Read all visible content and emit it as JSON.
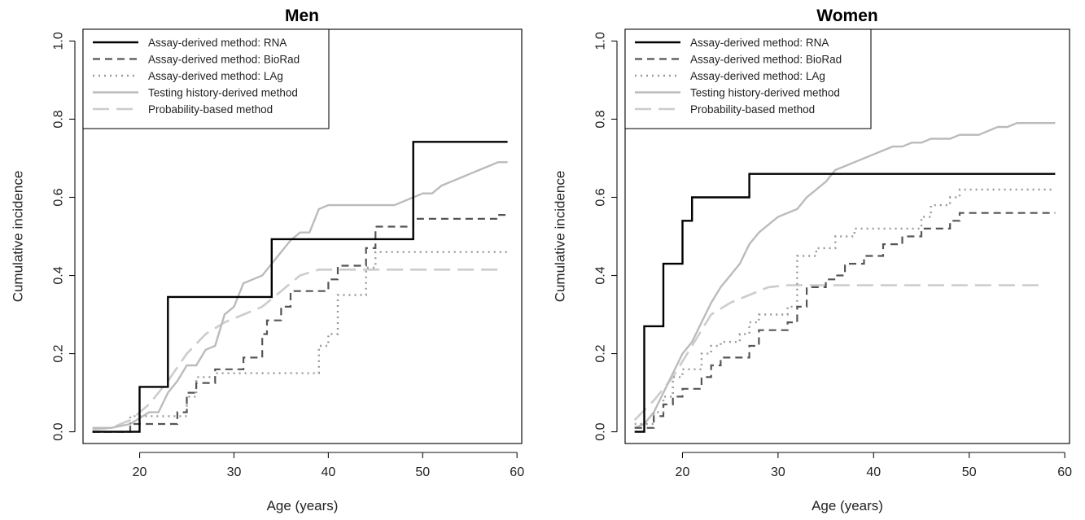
{
  "chart_data": [
    {
      "type": "line",
      "title": "Men",
      "xlabel": "Age (years)",
      "ylabel": "Cumulative incidence",
      "xlim": [
        14,
        60.5
      ],
      "ylim": [
        -0.03,
        1.03
      ],
      "xticks": [
        "20",
        "30",
        "40",
        "50",
        "60"
      ],
      "yticks": [
        "0.0",
        "0.2",
        "0.4",
        "0.6",
        "0.8",
        "1.0"
      ],
      "grid": false,
      "legend_position": "top-left",
      "series": [
        {
          "name": "Assay-derived method: RNA",
          "style": "solid",
          "color": "#000000",
          "step": true,
          "x": [
            15,
            19,
            20,
            22,
            23,
            33,
            34,
            48,
            49,
            59
          ],
          "y": [
            0,
            0,
            0.115,
            0.115,
            0.345,
            0.345,
            0.493,
            0.493,
            0.742,
            0.742
          ]
        },
        {
          "name": "Assay-derived method: BioRad",
          "style": "dashed",
          "color": "#555555",
          "step": true,
          "x": [
            15,
            18,
            19,
            23,
            24,
            25,
            26,
            27,
            28,
            30,
            31,
            32,
            33,
            33.5,
            34,
            35,
            36,
            37,
            38,
            39,
            40,
            41,
            42,
            43,
            44,
            45,
            48,
            49,
            50,
            57,
            58,
            59
          ],
          "y": [
            0,
            0,
            0.02,
            0.02,
            0.05,
            0.1,
            0.125,
            0.125,
            0.16,
            0.16,
            0.19,
            0.19,
            0.25,
            0.285,
            0.285,
            0.32,
            0.36,
            0.36,
            0.36,
            0.36,
            0.39,
            0.425,
            0.425,
            0.425,
            0.47,
            0.525,
            0.525,
            0.545,
            0.545,
            0.545,
            0.555,
            0.56
          ]
        },
        {
          "name": "Assay-derived method: LAg",
          "style": "dotted",
          "color": "#999999",
          "step": true,
          "x": [
            15,
            18,
            19,
            23,
            25,
            26,
            27,
            28,
            38,
            39,
            40,
            41,
            43,
            44,
            45,
            59
          ],
          "y": [
            0,
            0,
            0.04,
            0.04,
            0.09,
            0.14,
            0.14,
            0.15,
            0.15,
            0.22,
            0.25,
            0.35,
            0.35,
            0.42,
            0.46,
            0.46
          ]
        },
        {
          "name": "Testing history-derived method",
          "style": "solid",
          "color": "#bbbbbb",
          "step": false,
          "x": [
            15,
            17,
            19,
            21,
            22,
            23,
            24,
            25,
            26,
            27,
            28,
            29,
            30,
            31,
            32,
            33,
            34,
            35,
            36,
            37,
            38,
            39,
            40,
            41,
            42,
            43,
            44,
            45,
            46,
            47,
            48,
            49,
            50,
            51,
            52,
            53,
            54,
            55,
            56,
            57,
            58,
            59
          ],
          "y": [
            0.01,
            0.01,
            0.02,
            0.05,
            0.05,
            0.1,
            0.13,
            0.17,
            0.17,
            0.21,
            0.22,
            0.3,
            0.32,
            0.38,
            0.39,
            0.4,
            0.43,
            0.46,
            0.49,
            0.51,
            0.51,
            0.57,
            0.58,
            0.58,
            0.58,
            0.58,
            0.58,
            0.58,
            0.58,
            0.58,
            0.59,
            0.6,
            0.61,
            0.61,
            0.63,
            0.64,
            0.65,
            0.66,
            0.67,
            0.68,
            0.69,
            0.69
          ]
        },
        {
          "name": "Probability-based method",
          "style": "longdash",
          "color": "#cccccc",
          "step": false,
          "x": [
            15,
            17,
            19,
            21,
            23,
            25,
            27,
            29,
            31,
            33,
            35,
            37,
            39,
            41,
            43,
            58
          ],
          "y": [
            0.005,
            0.01,
            0.03,
            0.07,
            0.13,
            0.2,
            0.25,
            0.28,
            0.3,
            0.32,
            0.36,
            0.4,
            0.415,
            0.415,
            0.415,
            0.415
          ]
        }
      ]
    },
    {
      "type": "line",
      "title": "Women",
      "xlabel": "Age (years)",
      "ylabel": "Cumulative incidence",
      "xlim": [
        14,
        60.5
      ],
      "ylim": [
        -0.03,
        1.03
      ],
      "xticks": [
        "20",
        "30",
        "40",
        "50",
        "60"
      ],
      "yticks": [
        "0.0",
        "0.2",
        "0.4",
        "0.6",
        "0.8",
        "1.0"
      ],
      "grid": false,
      "legend_position": "top-left",
      "series": [
        {
          "name": "Assay-derived method: RNA",
          "style": "solid",
          "color": "#000000",
          "step": true,
          "x": [
            15,
            16,
            17,
            18,
            19,
            20,
            21,
            22,
            27,
            28,
            59
          ],
          "y": [
            0,
            0.27,
            0.27,
            0.43,
            0.43,
            0.54,
            0.6,
            0.6,
            0.66,
            0.66,
            0.66
          ]
        },
        {
          "name": "Assay-derived method: BioRad",
          "style": "dashed",
          "color": "#555555",
          "step": true,
          "x": [
            15,
            16,
            17,
            18,
            19,
            20,
            21,
            22,
            23,
            24,
            25,
            26,
            27,
            28,
            30,
            31,
            32,
            33,
            34,
            35,
            36,
            37,
            38,
            39,
            40,
            41,
            42,
            43,
            44,
            45,
            46,
            47,
            48,
            49,
            50,
            59
          ],
          "y": [
            0.01,
            0.01,
            0.04,
            0.07,
            0.09,
            0.11,
            0.11,
            0.14,
            0.17,
            0.19,
            0.19,
            0.19,
            0.22,
            0.26,
            0.26,
            0.28,
            0.32,
            0.37,
            0.37,
            0.39,
            0.4,
            0.43,
            0.43,
            0.45,
            0.45,
            0.48,
            0.48,
            0.5,
            0.5,
            0.52,
            0.52,
            0.52,
            0.54,
            0.56,
            0.56,
            0.56
          ]
        },
        {
          "name": "Assay-derived method: LAg",
          "style": "dotted",
          "color": "#999999",
          "step": true,
          "x": [
            15,
            16,
            17,
            18,
            19,
            20,
            21,
            22,
            23,
            24,
            25,
            26,
            27,
            28,
            29,
            30,
            31,
            32,
            33,
            34,
            35,
            36,
            37,
            38,
            39,
            40,
            41,
            42,
            43,
            44,
            45,
            46,
            47,
            48,
            49,
            50,
            59
          ],
          "y": [
            0.02,
            0.02,
            0.05,
            0.09,
            0.14,
            0.16,
            0.16,
            0.2,
            0.22,
            0.23,
            0.23,
            0.25,
            0.28,
            0.3,
            0.3,
            0.3,
            0.32,
            0.45,
            0.45,
            0.47,
            0.47,
            0.5,
            0.5,
            0.52,
            0.52,
            0.52,
            0.52,
            0.52,
            0.52,
            0.52,
            0.55,
            0.58,
            0.58,
            0.6,
            0.62,
            0.62,
            0.62
          ]
        },
        {
          "name": "Testing history-derived method",
          "style": "solid",
          "color": "#bbbbbb",
          "step": false,
          "x": [
            15,
            16,
            17,
            18,
            19,
            20,
            21,
            22,
            23,
            24,
            25,
            26,
            27,
            28,
            29,
            30,
            31,
            32,
            33,
            34,
            35,
            36,
            37,
            38,
            39,
            40,
            41,
            42,
            43,
            44,
            45,
            46,
            47,
            48,
            49,
            50,
            51,
            52,
            53,
            54,
            55,
            56,
            57,
            58,
            59
          ],
          "y": [
            0.01,
            0.02,
            0.05,
            0.1,
            0.15,
            0.2,
            0.23,
            0.28,
            0.33,
            0.37,
            0.4,
            0.43,
            0.48,
            0.51,
            0.53,
            0.55,
            0.56,
            0.57,
            0.6,
            0.62,
            0.64,
            0.67,
            0.68,
            0.69,
            0.7,
            0.71,
            0.72,
            0.73,
            0.73,
            0.74,
            0.74,
            0.75,
            0.75,
            0.75,
            0.76,
            0.76,
            0.76,
            0.77,
            0.78,
            0.78,
            0.79,
            0.79,
            0.79,
            0.79,
            0.79
          ]
        },
        {
          "name": "Probability-based method",
          "style": "longdash",
          "color": "#cccccc",
          "step": false,
          "x": [
            15,
            17,
            19,
            21,
            23,
            25,
            27,
            29,
            31,
            33,
            35,
            45,
            58
          ],
          "y": [
            0.03,
            0.08,
            0.14,
            0.22,
            0.3,
            0.33,
            0.35,
            0.37,
            0.375,
            0.375,
            0.375,
            0.375,
            0.375
          ]
        }
      ]
    }
  ]
}
